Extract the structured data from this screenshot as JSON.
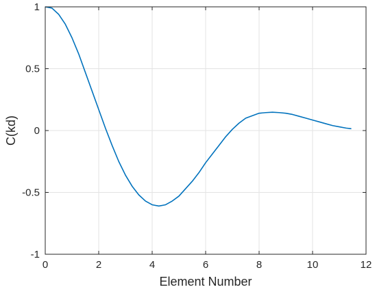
{
  "chart_data": {
    "type": "line",
    "title": "",
    "xlabel": "Element Number",
    "ylabel": "C(kd)",
    "xlim": [
      0,
      12
    ],
    "ylim": [
      -1,
      1
    ],
    "xticks": [
      0,
      2,
      4,
      6,
      8,
      10,
      12
    ],
    "yticks": [
      -1,
      -0.5,
      0,
      0.5,
      1
    ],
    "xtick_labels": [
      "0",
      "2",
      "4",
      "6",
      "8",
      "10",
      "12"
    ],
    "ytick_labels": [
      "-1",
      "-0.5",
      "0",
      "0.5",
      "1"
    ],
    "grid": true,
    "line_color": "#0072BD",
    "series": [
      {
        "x": [
          0,
          0.25,
          0.5,
          0.75,
          1,
          1.25,
          1.5,
          1.75,
          2,
          2.25,
          2.5,
          2.75,
          3,
          3.25,
          3.5,
          3.75,
          4,
          4.25,
          4.5,
          4.75,
          5,
          5.25,
          5.5,
          5.75,
          6,
          6.25,
          6.5,
          6.75,
          7,
          7.25,
          7.5,
          7.75,
          8,
          8.25,
          8.5,
          8.75,
          9,
          9.25,
          9.5,
          9.75,
          10,
          10.25,
          10.5,
          10.75,
          11,
          11.25,
          11.45
        ],
        "y": [
          1.0,
          0.99,
          0.94,
          0.86,
          0.75,
          0.62,
          0.47,
          0.32,
          0.17,
          0.02,
          -0.12,
          -0.25,
          -0.36,
          -0.45,
          -0.52,
          -0.57,
          -0.6,
          -0.61,
          -0.6,
          -0.57,
          -0.53,
          -0.47,
          -0.41,
          -0.34,
          -0.26,
          -0.19,
          -0.12,
          -0.05,
          0.01,
          0.06,
          0.1,
          0.12,
          0.14,
          0.145,
          0.148,
          0.145,
          0.14,
          0.13,
          0.115,
          0.1,
          0.085,
          0.07,
          0.055,
          0.04,
          0.03,
          0.02,
          0.015
        ]
      }
    ]
  }
}
